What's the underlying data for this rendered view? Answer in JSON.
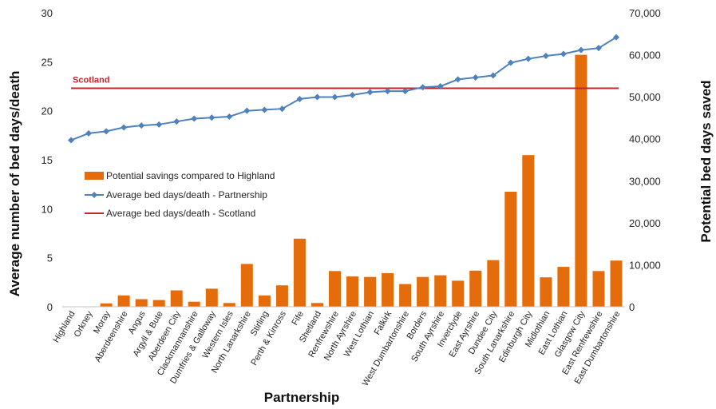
{
  "chart_data": {
    "type": "bar+line",
    "xlabel": "Partnership",
    "ylabel_left": "Average number of bed days/death",
    "ylabel_right": "Potential bed days saved",
    "ylim_left": [
      0,
      30
    ],
    "ylim_right": [
      0,
      70000
    ],
    "yticks_left": [
      "0",
      "5",
      "10",
      "15",
      "20",
      "25",
      "30"
    ],
    "yticks_right": [
      "0",
      "10,000",
      "20,000",
      "30,000",
      "40,000",
      "50,000",
      "60,000",
      "70,000"
    ],
    "categories": [
      "Highland",
      "Orkney",
      "Moray",
      "Aberdeenshire",
      "Angus",
      "Argyll & Bute",
      "Aberdeen City",
      "Clackmannanshire",
      "Dumfries & Galloway",
      "Western Isles",
      "North Lanarkshire",
      "Stirling",
      "Perth & Kinross",
      "Fife",
      "Shetland",
      "Renfrewshire",
      "North Ayrshire",
      "West Lothian",
      "Falkirk",
      "West Dumbartonshire",
      "Borders",
      "South Ayrshire",
      "Inverclyde",
      "East Ayrshire",
      "Dundee City",
      "South Lanarkshire",
      "Edinburgh City",
      "Midlothian",
      "East Lothian",
      "Glasgow City",
      "East Renfrewshire",
      "East Dumbartonshire"
    ],
    "series": [
      {
        "name": "Potential savings compared to Highland",
        "kind": "bar",
        "axis": "right",
        "color": "#E46C0A",
        "values": [
          0,
          100,
          800,
          2700,
          1800,
          1600,
          3900,
          1200,
          4300,
          900,
          10200,
          2700,
          5100,
          16200,
          900,
          8500,
          7200,
          7100,
          8000,
          5400,
          7100,
          7500,
          6200,
          8600,
          11100,
          27400,
          36100,
          7000,
          9500,
          60000,
          8500,
          11000
        ]
      },
      {
        "name": "Average bed days/death - Partnership",
        "kind": "line",
        "axis": "left",
        "color": "#4F81BD",
        "values": [
          17.0,
          17.7,
          17.9,
          18.3,
          18.5,
          18.6,
          18.9,
          19.2,
          19.3,
          19.4,
          20.0,
          20.1,
          20.2,
          21.2,
          21.4,
          21.4,
          21.6,
          21.9,
          22.0,
          22.0,
          22.4,
          22.5,
          23.2,
          23.4,
          23.6,
          24.9,
          25.3,
          25.6,
          25.8,
          26.2,
          26.4,
          27.5
        ]
      },
      {
        "name": "Average bed days/death - Scotland",
        "kind": "hline",
        "axis": "left",
        "color": "#C0272D",
        "value": 22.3,
        "label": "Scotland"
      }
    ],
    "legend_position": "inside-left"
  }
}
